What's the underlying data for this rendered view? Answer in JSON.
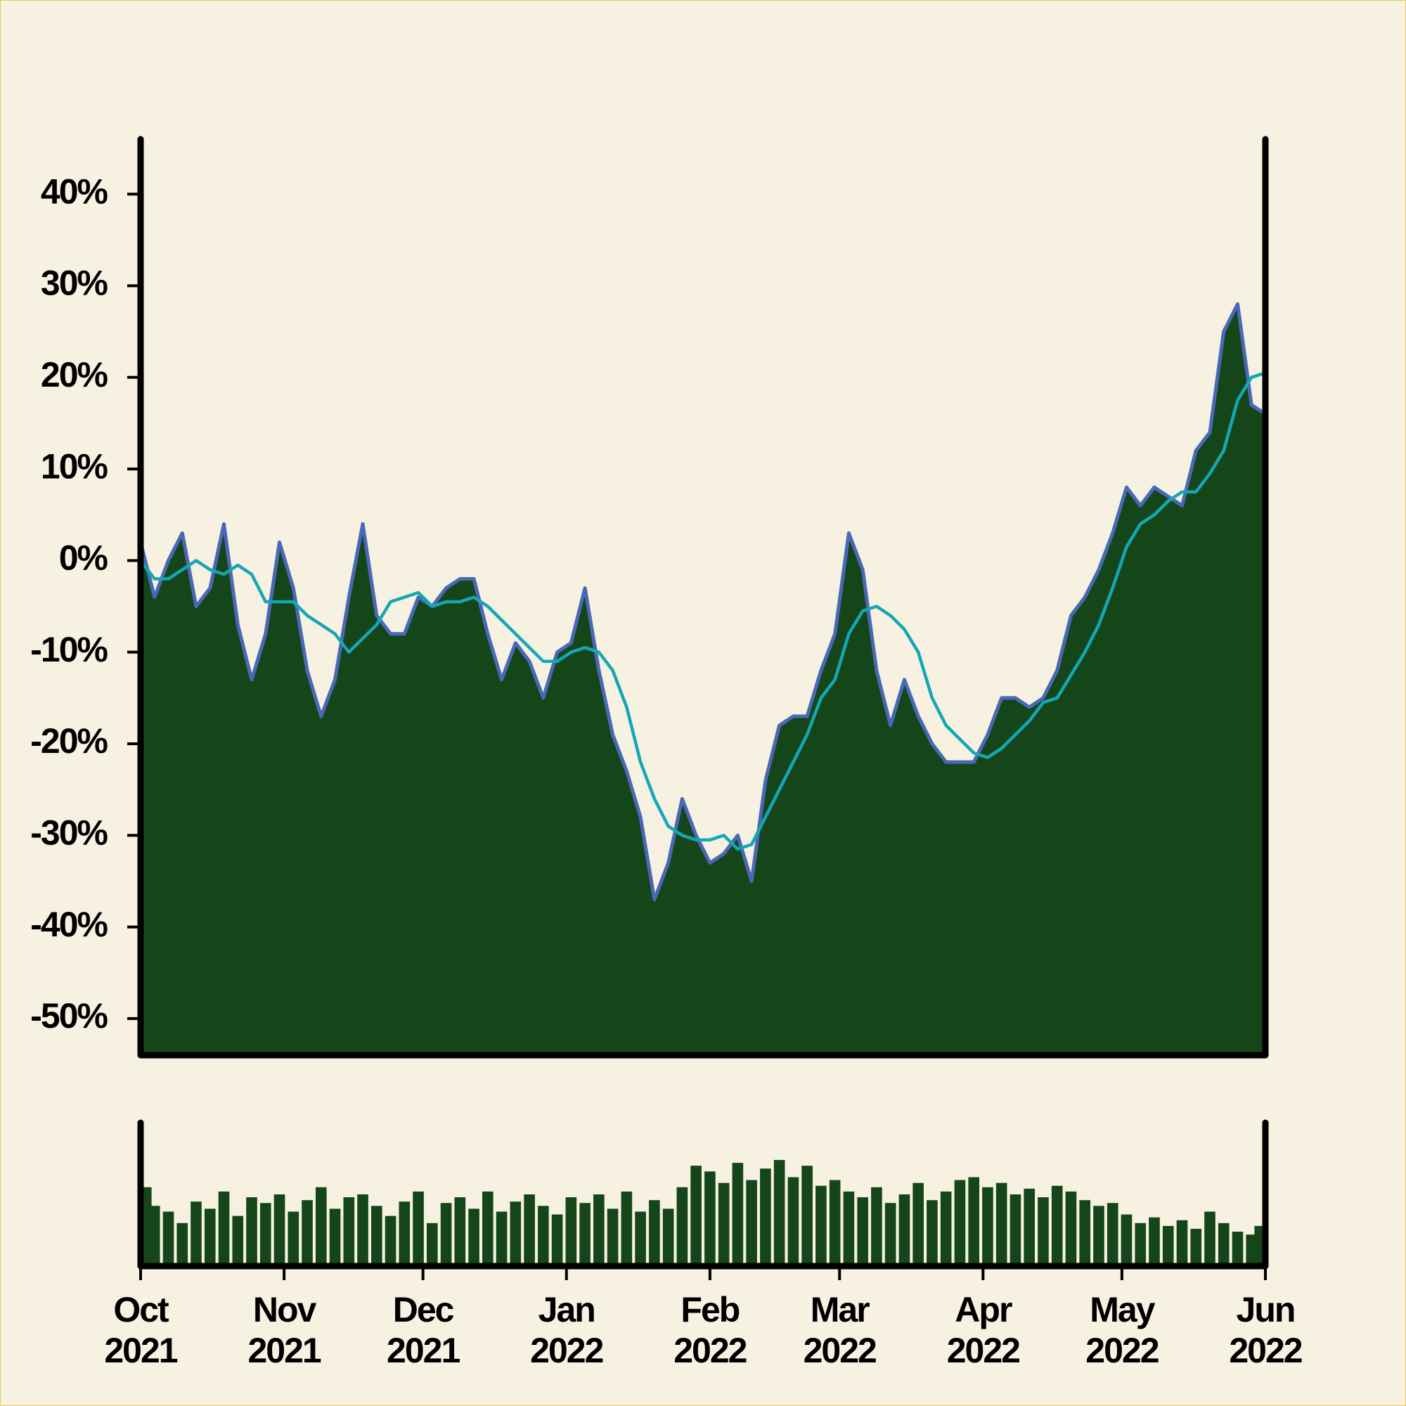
{
  "chart_data": [
    {
      "type": "area",
      "x": [
        0,
        3,
        6,
        9,
        12,
        15,
        18,
        21,
        24,
        27,
        30,
        33,
        36,
        39,
        42,
        45,
        48,
        51,
        54,
        57,
        60,
        63,
        66,
        69,
        72,
        75,
        78,
        81,
        84,
        87,
        90,
        93,
        96,
        99,
        102,
        105,
        108,
        111,
        114,
        117,
        120,
        123,
        126,
        129,
        132,
        135,
        138,
        141,
        144,
        147,
        150,
        153,
        156,
        159,
        162,
        165,
        168,
        171,
        174,
        177,
        180,
        183,
        186,
        189,
        192,
        195,
        198,
        201,
        204,
        207,
        210,
        213,
        216,
        219,
        222,
        225,
        228,
        231,
        234,
        237,
        240,
        243
      ],
      "series": [
        {
          "type": "area",
          "color": "#15461a",
          "line_color": "#4a68b8",
          "values": [
            2,
            -4,
            0,
            3,
            -5,
            -3,
            4,
            -7,
            -13,
            -8,
            2,
            -3,
            -12,
            -17,
            -13,
            -4,
            4,
            -6,
            -8,
            -8,
            -4,
            -5,
            -3,
            -2,
            -2,
            -8,
            -13,
            -9,
            -11,
            -15,
            -10,
            -9,
            -3,
            -12,
            -19,
            -23,
            -28,
            -37,
            -33,
            -26,
            -30,
            -33,
            -32,
            -30,
            -35,
            -24,
            -18,
            -17,
            -17,
            -12,
            -8,
            3,
            -1,
            -12,
            -18,
            -13,
            -17,
            -20,
            -22,
            -22,
            -22,
            -19,
            -15,
            -15,
            -16,
            -15,
            -12,
            -6,
            -4,
            -1,
            3,
            8,
            6,
            8,
            7,
            6,
            12,
            14,
            25,
            28,
            17,
            16
          ]
        },
        {
          "type": "line",
          "color": "#14a7b5",
          "values": [
            0,
            -2,
            -2,
            -1,
            0,
            -1,
            -1.5,
            -0.5,
            -1.5,
            -4.5,
            -4.5,
            -4.5,
            -6,
            -7,
            -8,
            -10,
            -8.5,
            -7,
            -4.5,
            -4,
            -3.5,
            -5,
            -4.5,
            -4.5,
            -4,
            -5,
            -6.5,
            -8,
            -9.5,
            -11,
            -11,
            -10,
            -9.5,
            -10,
            -12,
            -16,
            -22,
            -26,
            -29,
            -30,
            -30.5,
            -30.5,
            -30,
            -31.5,
            -31,
            -28,
            -25,
            -22,
            -19,
            -15,
            -13,
            -8,
            -5.5,
            -5,
            -6,
            -7.5,
            -10,
            -15,
            -18,
            -19.5,
            -21,
            -21.5,
            -20.5,
            -19,
            -17.5,
            -15.5,
            -15,
            -12.5,
            -10,
            -7,
            -3,
            1.5,
            4,
            5,
            6.5,
            7.5,
            7.5,
            9.5,
            12,
            17.5,
            20,
            20.5
          ]
        }
      ],
      "xlim": [
        0,
        243
      ],
      "ylim": [
        -54,
        46
      ],
      "yticks": [
        {
          "value": 40,
          "label": "40%"
        },
        {
          "value": 30,
          "label": "30%"
        },
        {
          "value": 20,
          "label": "20%"
        },
        {
          "value": 10,
          "label": "10%"
        },
        {
          "value": 0,
          "label": "0%"
        },
        {
          "value": -10,
          "label": "-10%"
        },
        {
          "value": -20,
          "label": "-20%"
        },
        {
          "value": -30,
          "label": "-30%"
        },
        {
          "value": -40,
          "label": "-40%"
        },
        {
          "value": -50,
          "label": "-50%"
        }
      ]
    },
    {
      "type": "bar",
      "x": [
        0,
        3,
        6,
        9,
        12,
        15,
        18,
        21,
        24,
        27,
        30,
        33,
        36,
        39,
        42,
        45,
        48,
        51,
        54,
        57,
        60,
        63,
        66,
        69,
        72,
        75,
        78,
        81,
        84,
        87,
        90,
        93,
        96,
        99,
        102,
        105,
        108,
        111,
        114,
        117,
        120,
        123,
        126,
        129,
        132,
        135,
        138,
        141,
        144,
        147,
        150,
        153,
        156,
        159,
        162,
        165,
        168,
        171,
        174,
        177,
        180,
        183,
        186,
        189,
        192,
        195,
        198,
        201,
        204,
        207,
        210,
        213,
        216,
        219,
        222,
        225,
        228,
        231,
        234,
        237,
        240,
        243
      ],
      "values": [
        55,
        42,
        38,
        30,
        45,
        40,
        52,
        35,
        48,
        44,
        50,
        38,
        46,
        55,
        40,
        48,
        50,
        42,
        35,
        45,
        52,
        30,
        44,
        48,
        40,
        52,
        38,
        45,
        50,
        42,
        36,
        48,
        44,
        50,
        40,
        52,
        38,
        46,
        40,
        55,
        70,
        66,
        58,
        72,
        60,
        68,
        74,
        62,
        70,
        56,
        60,
        52,
        48,
        55,
        44,
        50,
        58,
        46,
        52,
        60,
        62,
        55,
        58,
        50,
        54,
        48,
        56,
        52,
        46,
        42,
        44,
        36,
        30,
        34,
        28,
        32,
        26,
        38,
        30,
        24,
        22,
        28
      ],
      "color": "#15461a",
      "xlim": [
        0,
        243
      ],
      "ylim": [
        0,
        100
      ],
      "xticks": [
        {
          "value": 0,
          "label": "Oct 2021"
        },
        {
          "value": 31,
          "label": "Nov 2021"
        },
        {
          "value": 61,
          "label": "Dec 2021"
        },
        {
          "value": 92,
          "label": "Jan 2022"
        },
        {
          "value": 123,
          "label": "Feb 2022"
        },
        {
          "value": 151,
          "label": "Mar 2022"
        },
        {
          "value": 182,
          "label": "Apr 2022"
        },
        {
          "value": 212,
          "label": "May 2022"
        },
        {
          "value": 243,
          "label": "Jun 2022"
        }
      ]
    }
  ]
}
